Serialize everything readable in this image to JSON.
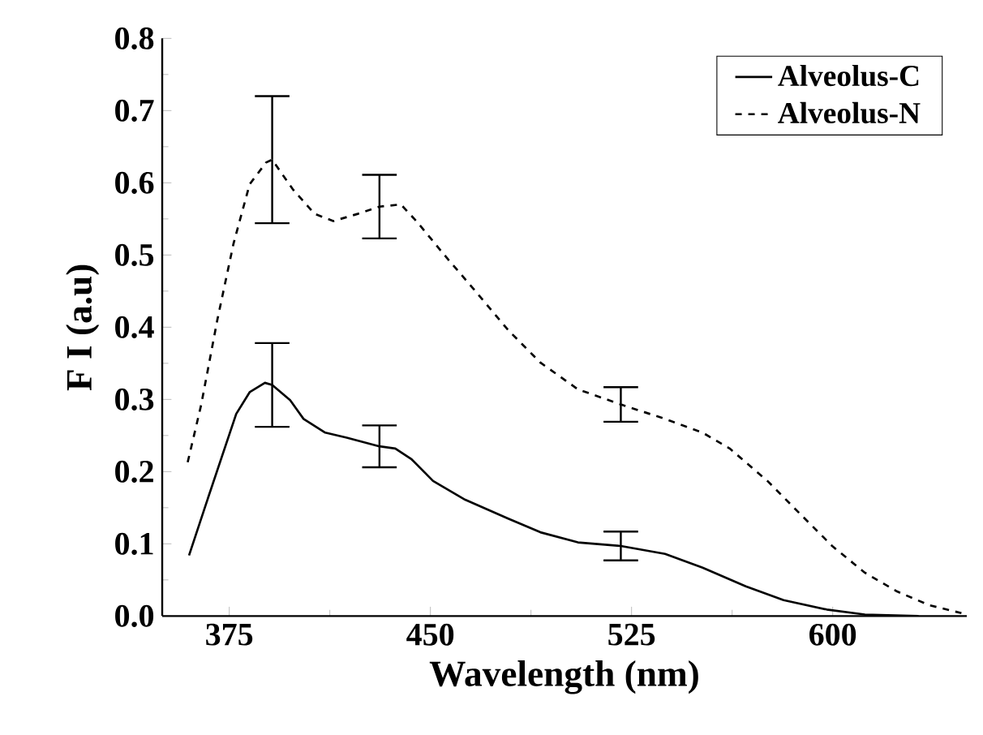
{
  "chart_data": {
    "type": "line",
    "xlabel": "Wavelength (nm)",
    "ylabel": "F I (a.u)",
    "xlim": [
      350,
      650
    ],
    "ylim": [
      0,
      0.8
    ],
    "xticks": [
      375,
      450,
      525,
      600
    ],
    "yticks": [
      {
        "value": 0,
        "label": "0.0"
      },
      0.1,
      0.2,
      0.3,
      0.4,
      0.5,
      0.6,
      0.7,
      0.8
    ],
    "legend": "top right",
    "grid": false,
    "series": [
      {
        "name": "Alveolus-C",
        "color": "#000000",
        "line_style": "solid",
        "x": [
          360,
          366.5,
          377.6,
          382.6,
          388.3,
          391,
          397.7,
          402.7,
          410.8,
          418.8,
          431,
          436.9,
          443,
          451,
          463,
          479,
          491,
          505,
          521,
          537.5,
          551.5,
          567.6,
          581.7,
          597.8,
          612,
          632
        ],
        "values": [
          0.084,
          0.157,
          0.28,
          0.31,
          0.323,
          0.32,
          0.299,
          0.273,
          0.254,
          0.247,
          0.235,
          0.232,
          0.217,
          0.187,
          0.161,
          0.135,
          0.116,
          0.102,
          0.097,
          0.086,
          0.067,
          0.041,
          0.022,
          0.009,
          0.002,
          0
        ],
        "errors": [
          null,
          null,
          null,
          null,
          null,
          0.058,
          null,
          null,
          null,
          null,
          0.029,
          null,
          null,
          null,
          null,
          null,
          null,
          null,
          0.02,
          null,
          null,
          null,
          null,
          null,
          null,
          null
        ]
      },
      {
        "name": "Alveolus-N",
        "color": "#000000",
        "line_style": "dashed",
        "x": [
          359.5,
          364.5,
          370.6,
          376.6,
          382.6,
          388.7,
          391,
          398.7,
          406.8,
          413.8,
          422.9,
          431,
          439,
          445,
          455,
          467,
          479,
          491,
          505,
          521,
          537.5,
          551.5,
          561.6,
          575.7,
          587.7,
          599.8,
          612,
          624,
          636,
          648
        ],
        "values": [
          0.213,
          0.292,
          0.411,
          0.516,
          0.598,
          0.628,
          0.632,
          0.591,
          0.557,
          0.547,
          0.557,
          0.567,
          0.57,
          0.546,
          0.501,
          0.449,
          0.396,
          0.351,
          0.314,
          0.293,
          0.273,
          0.254,
          0.232,
          0.187,
          0.142,
          0.097,
          0.06,
          0.034,
          0.015,
          0.004
        ],
        "errors": [
          null,
          null,
          null,
          null,
          null,
          null,
          0.088,
          null,
          null,
          null,
          null,
          0.044,
          null,
          null,
          null,
          null,
          null,
          null,
          null,
          0.024,
          null,
          null,
          null,
          null,
          null,
          null,
          null,
          null,
          null,
          null
        ]
      }
    ]
  }
}
